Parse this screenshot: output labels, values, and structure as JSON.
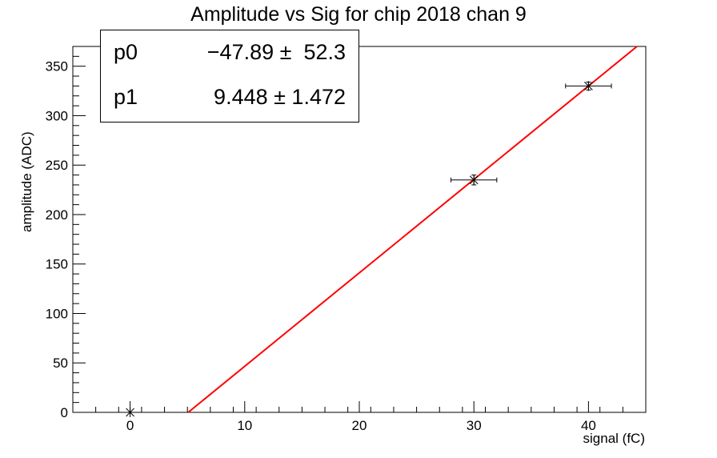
{
  "chart_data": {
    "type": "scatter",
    "title": "Amplitude vs Sig for chip 2018 chan 9",
    "xlabel": "signal (fC)",
    "ylabel": "amplitude (ADC)",
    "xlim": [
      -5,
      45
    ],
    "ylim": [
      0,
      370
    ],
    "xticks": [
      0,
      10,
      20,
      30,
      40
    ],
    "yticks": [
      0,
      50,
      100,
      150,
      200,
      250,
      300,
      350
    ],
    "points": [
      {
        "x": 0,
        "y": 0,
        "xerr": 0,
        "yerr": 0
      },
      {
        "x": 30,
        "y": 235,
        "xerr": 2,
        "yerr": 5
      },
      {
        "x": 40,
        "y": 330,
        "xerr": 2,
        "yerr": 4
      }
    ],
    "fit": {
      "p0": -47.89,
      "p1": 9.448,
      "color": "#ff0000"
    },
    "grid": false
  },
  "stats": {
    "rows": [
      {
        "name": "p0",
        "value": "−47.89 ±  52.3"
      },
      {
        "name": "p1",
        "value": "9.448 ± 1.472"
      }
    ]
  }
}
